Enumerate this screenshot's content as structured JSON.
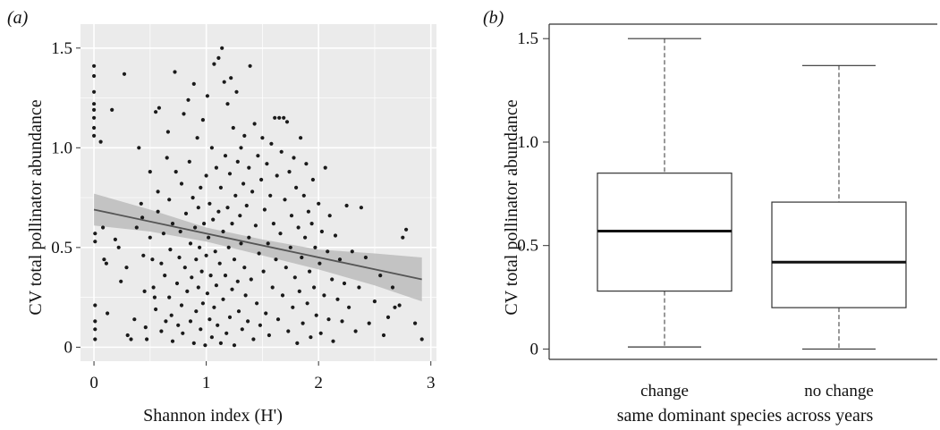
{
  "chart_data": [
    {
      "panel_label": "(a)",
      "type": "scatter",
      "xlabel": "Shannon index (H')",
      "ylabel": "CV total pollinator abundance",
      "xlim": [
        -0.12,
        3.05
      ],
      "ylim": [
        -0.07,
        1.62
      ],
      "xticks": [
        0,
        1,
        2,
        3
      ],
      "xtick_labels": [
        "0",
        "1",
        "2",
        "3"
      ],
      "yticks": [
        0,
        0.5,
        1.0,
        1.5
      ],
      "ytick_labels": [
        "0",
        "0.5",
        "1.0",
        "1.5"
      ],
      "grid": true,
      "background": "#ebebeb",
      "grid_color": "#ffffff",
      "point_color": "#1a1a1a",
      "line_color": "#555555",
      "band_color": "#bcbcbc",
      "fit_line": {
        "x": [
          0,
          2.92
        ],
        "y": [
          0.69,
          0.34
        ]
      },
      "confidence_band": {
        "x": [
          0,
          0.5,
          1.0,
          1.5,
          2.0,
          2.5,
          2.92
        ],
        "lower": [
          0.61,
          0.58,
          0.53,
          0.46,
          0.39,
          0.31,
          0.23
        ],
        "upper": [
          0.77,
          0.69,
          0.6,
          0.54,
          0.49,
          0.47,
          0.45
        ]
      },
      "points": [
        [
          0.0,
          1.41
        ],
        [
          0.0,
          1.36
        ],
        [
          0.0,
          1.28
        ],
        [
          0.0,
          1.22
        ],
        [
          0.0,
          1.19
        ],
        [
          0.0,
          1.15
        ],
        [
          0.0,
          1.1
        ],
        [
          0.0,
          1.06
        ],
        [
          0.01,
          0.57
        ],
        [
          0.01,
          0.53
        ],
        [
          0.01,
          0.21
        ],
        [
          0.01,
          0.13
        ],
        [
          0.01,
          0.09
        ],
        [
          0.01,
          0.04
        ],
        [
          0.06,
          1.03
        ],
        [
          0.08,
          0.6
        ],
        [
          0.09,
          0.44
        ],
        [
          0.11,
          0.42
        ],
        [
          0.12,
          0.17
        ],
        [
          0.16,
          1.19
        ],
        [
          0.19,
          0.54
        ],
        [
          0.22,
          0.5
        ],
        [
          0.24,
          0.33
        ],
        [
          0.27,
          1.37
        ],
        [
          0.29,
          0.4
        ],
        [
          0.3,
          0.06
        ],
        [
          0.33,
          0.04
        ],
        [
          0.36,
          0.14
        ],
        [
          0.38,
          0.6
        ],
        [
          0.4,
          1.0
        ],
        [
          0.42,
          0.72
        ],
        [
          0.43,
          0.65
        ],
        [
          0.44,
          0.46
        ],
        [
          0.45,
          0.28
        ],
        [
          0.46,
          0.1
        ],
        [
          0.47,
          0.04
        ],
        [
          0.5,
          0.55
        ],
        [
          0.5,
          0.88
        ],
        [
          0.52,
          0.44
        ],
        [
          0.53,
          0.3
        ],
        [
          0.54,
          0.25
        ],
        [
          0.55,
          0.19
        ],
        [
          0.55,
          1.18
        ],
        [
          0.57,
          0.78
        ],
        [
          0.57,
          0.68
        ],
        [
          0.58,
          1.2
        ],
        [
          0.6,
          0.42
        ],
        [
          0.6,
          0.08
        ],
        [
          0.62,
          0.57
        ],
        [
          0.63,
          0.36
        ],
        [
          0.64,
          0.13
        ],
        [
          0.65,
          0.95
        ],
        [
          0.66,
          1.08
        ],
        [
          0.67,
          0.74
        ],
        [
          0.67,
          0.25
        ],
        [
          0.68,
          0.49
        ],
        [
          0.69,
          0.16
        ],
        [
          0.7,
          0.62
        ],
        [
          0.7,
          0.03
        ],
        [
          0.72,
          1.38
        ],
        [
          0.73,
          0.88
        ],
        [
          0.74,
          0.32
        ],
        [
          0.75,
          0.11
        ],
        [
          0.76,
          0.45
        ],
        [
          0.77,
          0.58
        ],
        [
          0.78,
          0.82
        ],
        [
          0.78,
          0.21
        ],
        [
          0.79,
          0.07
        ],
        [
          0.8,
          1.17
        ],
        [
          0.81,
          0.4
        ],
        [
          0.82,
          0.67
        ],
        [
          0.83,
          0.28
        ],
        [
          0.84,
          1.24
        ],
        [
          0.85,
          0.93
        ],
        [
          0.86,
          0.52
        ],
        [
          0.86,
          0.13
        ],
        [
          0.87,
          0.35
        ],
        [
          0.88,
          0.75
        ],
        [
          0.89,
          1.32
        ],
        [
          0.89,
          0.02
        ],
        [
          0.9,
          0.6
        ],
        [
          0.91,
          0.18
        ],
        [
          0.91,
          0.44
        ],
        [
          0.92,
          1.05
        ],
        [
          0.93,
          0.7
        ],
        [
          0.93,
          0.3
        ],
        [
          0.94,
          0.5
        ],
        [
          0.95,
          0.09
        ],
        [
          0.95,
          0.8
        ],
        [
          0.96,
          0.38
        ],
        [
          0.97,
          1.14
        ],
        [
          0.97,
          0.22
        ],
        [
          0.98,
          0.62
        ],
        [
          0.99,
          0.01
        ],
        [
          1.0,
          0.46
        ],
        [
          1.0,
          0.86
        ],
        [
          1.01,
          0.27
        ],
        [
          1.01,
          1.26
        ],
        [
          1.02,
          0.55
        ],
        [
          1.03,
          0.14
        ],
        [
          1.03,
          0.72
        ],
        [
          1.04,
          0.36
        ],
        [
          1.05,
          1.0
        ],
        [
          1.05,
          0.05
        ],
        [
          1.06,
          0.64
        ],
        [
          1.07,
          0.2
        ],
        [
          1.07,
          1.42
        ],
        [
          1.08,
          0.48
        ],
        [
          1.09,
          0.9
        ],
        [
          1.09,
          0.31
        ],
        [
          1.1,
          0.11
        ],
        [
          1.11,
          0.68
        ],
        [
          1.11,
          1.45
        ],
        [
          1.12,
          0.42
        ],
        [
          1.13,
          0.8
        ],
        [
          1.13,
          0.02
        ],
        [
          1.14,
          1.5
        ],
        [
          1.15,
          0.58
        ],
        [
          1.15,
          0.24
        ],
        [
          1.16,
          1.33
        ],
        [
          1.17,
          0.96
        ],
        [
          1.17,
          0.36
        ],
        [
          1.18,
          0.07
        ],
        [
          1.19,
          0.7
        ],
        [
          1.19,
          1.22
        ],
        [
          1.2,
          0.5
        ],
        [
          1.21,
          0.15
        ],
        [
          1.21,
          0.87
        ],
        [
          1.22,
          1.35
        ],
        [
          1.23,
          0.62
        ],
        [
          1.23,
          0.29
        ],
        [
          1.24,
          1.1
        ],
        [
          1.25,
          0.44
        ],
        [
          1.25,
          0.01
        ],
        [
          1.26,
          0.76
        ],
        [
          1.27,
          1.28
        ],
        [
          1.28,
          0.33
        ],
        [
          1.28,
          0.93
        ],
        [
          1.29,
          0.18
        ],
        [
          1.3,
          0.66
        ],
        [
          1.31,
          1.0
        ],
        [
          1.31,
          0.52
        ],
        [
          1.32,
          0.09
        ],
        [
          1.33,
          0.82
        ],
        [
          1.34,
          0.4
        ],
        [
          1.34,
          1.06
        ],
        [
          1.35,
          0.26
        ],
        [
          1.36,
          0.71
        ],
        [
          1.37,
          0.13
        ],
        [
          1.38,
          0.9
        ],
        [
          1.38,
          0.55
        ],
        [
          1.39,
          1.41
        ],
        [
          1.4,
          0.34
        ],
        [
          1.41,
          0.78
        ],
        [
          1.42,
          0.04
        ],
        [
          1.43,
          1.12
        ],
        [
          1.44,
          0.61
        ],
        [
          1.45,
          0.22
        ],
        [
          1.46,
          0.96
        ],
        [
          1.47,
          0.47
        ],
        [
          1.48,
          0.11
        ],
        [
          1.49,
          0.84
        ],
        [
          1.5,
          1.05
        ],
        [
          1.51,
          0.38
        ],
        [
          1.52,
          0.69
        ],
        [
          1.53,
          0.17
        ],
        [
          1.54,
          0.92
        ],
        [
          1.55,
          0.52
        ],
        [
          1.56,
          0.06
        ],
        [
          1.57,
          0.76
        ],
        [
          1.58,
          1.02
        ],
        [
          1.59,
          0.3
        ],
        [
          1.6,
          0.62
        ],
        [
          1.61,
          1.15
        ],
        [
          1.62,
          0.44
        ],
        [
          1.63,
          0.86
        ],
        [
          1.64,
          0.14
        ],
        [
          1.65,
          1.15
        ],
        [
          1.66,
          0.57
        ],
        [
          1.67,
          0.98
        ],
        [
          1.68,
          0.26
        ],
        [
          1.69,
          1.15
        ],
        [
          1.7,
          0.74
        ],
        [
          1.71,
          0.4
        ],
        [
          1.72,
          1.13
        ],
        [
          1.73,
          0.08
        ],
        [
          1.74,
          0.88
        ],
        [
          1.75,
          0.5
        ],
        [
          1.76,
          0.66
        ],
        [
          1.77,
          0.2
        ],
        [
          1.78,
          0.95
        ],
        [
          1.79,
          0.35
        ],
        [
          1.8,
          0.8
        ],
        [
          1.81,
          0.02
        ],
        [
          1.82,
          0.6
        ],
        [
          1.83,
          0.28
        ],
        [
          1.84,
          1.05
        ],
        [
          1.85,
          0.45
        ],
        [
          1.86,
          0.12
        ],
        [
          1.87,
          0.76
        ],
        [
          1.88,
          0.55
        ],
        [
          1.89,
          0.92
        ],
        [
          1.9,
          0.22
        ],
        [
          1.91,
          0.68
        ],
        [
          1.92,
          0.38
        ],
        [
          1.93,
          0.05
        ],
        [
          1.94,
          0.62
        ],
        [
          1.95,
          0.84
        ],
        [
          1.96,
          0.3
        ],
        [
          1.97,
          0.5
        ],
        [
          1.98,
          0.16
        ],
        [
          2.0,
          0.72
        ],
        [
          2.01,
          0.42
        ],
        [
          2.02,
          0.07
        ],
        [
          2.03,
          0.58
        ],
        [
          2.05,
          0.26
        ],
        [
          2.06,
          0.9
        ],
        [
          2.08,
          0.48
        ],
        [
          2.09,
          0.14
        ],
        [
          2.1,
          0.66
        ],
        [
          2.12,
          0.34
        ],
        [
          2.13,
          0.03
        ],
        [
          2.15,
          0.56
        ],
        [
          2.17,
          0.24
        ],
        [
          2.19,
          0.44
        ],
        [
          2.21,
          0.13
        ],
        [
          2.23,
          0.32
        ],
        [
          2.25,
          0.71
        ],
        [
          2.27,
          0.2
        ],
        [
          2.3,
          0.48
        ],
        [
          2.33,
          0.08
        ],
        [
          2.36,
          0.3
        ],
        [
          2.38,
          0.7
        ],
        [
          2.42,
          0.45
        ],
        [
          2.45,
          0.12
        ],
        [
          2.5,
          0.23
        ],
        [
          2.55,
          0.36
        ],
        [
          2.58,
          0.06
        ],
        [
          2.62,
          0.15
        ],
        [
          2.66,
          0.3
        ],
        [
          2.68,
          0.2
        ],
        [
          2.72,
          0.21
        ],
        [
          2.75,
          0.55
        ],
        [
          2.78,
          0.59
        ],
        [
          2.86,
          0.12
        ],
        [
          2.92,
          0.04
        ]
      ]
    },
    {
      "panel_label": "(b)",
      "type": "box",
      "xlabel": "same dominant species across years",
      "ylabel": "CV total pollinator abundance",
      "ylim": [
        -0.05,
        1.57
      ],
      "yticks": [
        0,
        0.5,
        1.0,
        1.5
      ],
      "ytick_labels": [
        "0",
        "0.5",
        "1.0",
        "1.5"
      ],
      "categories": [
        "change",
        "no change"
      ],
      "boxes": [
        {
          "category": "change",
          "whisker_low": 0.01,
          "q1": 0.28,
          "median": 0.57,
          "q3": 0.85,
          "whisker_high": 1.5
        },
        {
          "category": "no change",
          "whisker_low": 0.0,
          "q1": 0.2,
          "median": 0.42,
          "q3": 0.71,
          "whisker_high": 1.37
        }
      ]
    }
  ]
}
